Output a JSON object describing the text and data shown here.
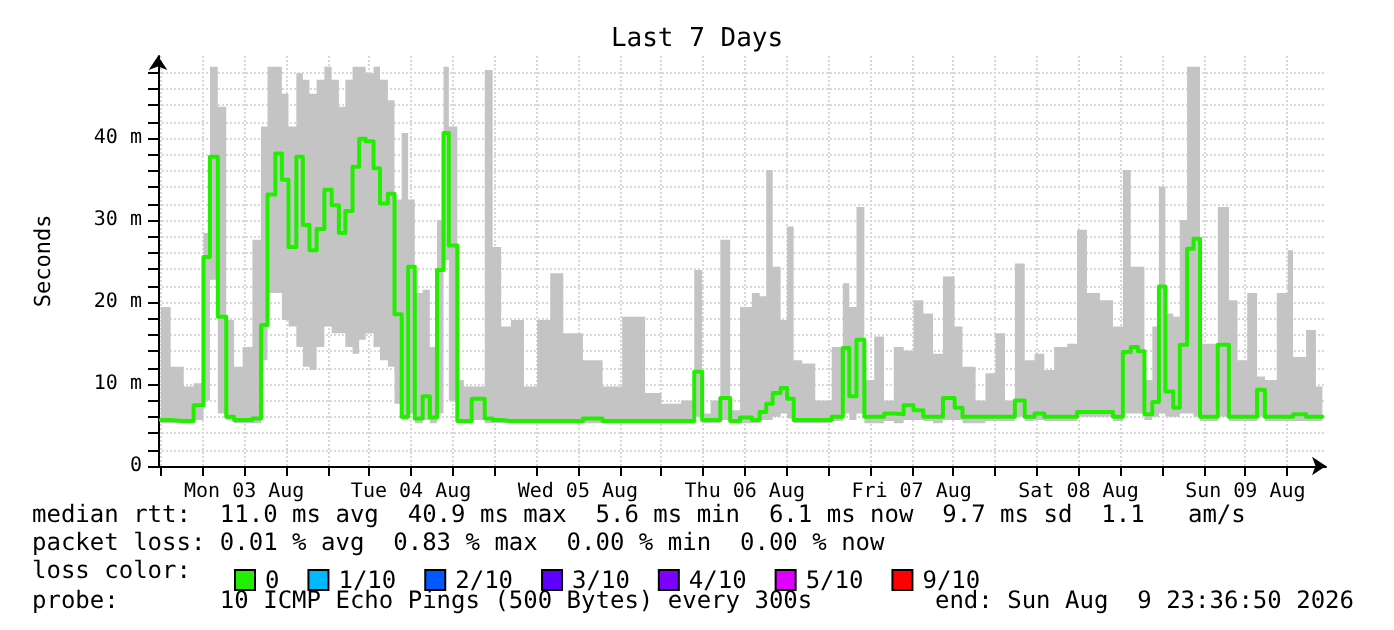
{
  "chart_data": {
    "type": "step",
    "title": "Last 7 Days",
    "ylabel": "Seconds",
    "legend_title": "loss color:",
    "legend": "bottom left",
    "grid": true,
    "marker": "none",
    "line_style": "solid",
    "xlim": [
      "2026-08-02T23:36",
      "2026-08-09T23:36"
    ],
    "xticks": [
      {
        "value": "2026-08-03T00:00",
        "label": null
      },
      {
        "value": "2026-08-03T06:00",
        "label": null
      },
      {
        "value": "2026-08-03T12:00",
        "label": "Mon 03 Aug"
      },
      {
        "value": "2026-08-03T18:00",
        "label": null
      },
      {
        "value": "2026-08-04T00:00",
        "label": null
      },
      {
        "value": "2026-08-04T06:00",
        "label": null
      },
      {
        "value": "2026-08-04T12:00",
        "label": "Tue 04 Aug"
      },
      {
        "value": "2026-08-04T18:00",
        "label": null
      },
      {
        "value": "2026-08-05T00:00",
        "label": null
      },
      {
        "value": "2026-08-05T06:00",
        "label": null
      },
      {
        "value": "2026-08-05T12:00",
        "label": "Wed 05 Aug"
      },
      {
        "value": "2026-08-05T18:00",
        "label": null
      },
      {
        "value": "2026-08-06T00:00",
        "label": null
      },
      {
        "value": "2026-08-06T06:00",
        "label": null
      },
      {
        "value": "2026-08-06T12:00",
        "label": "Thu 06 Aug"
      },
      {
        "value": "2026-08-06T18:00",
        "label": null
      },
      {
        "value": "2026-08-07T00:00",
        "label": null
      },
      {
        "value": "2026-08-07T06:00",
        "label": null
      },
      {
        "value": "2026-08-07T12:00",
        "label": "Fri 07 Aug"
      },
      {
        "value": "2026-08-07T18:00",
        "label": null
      },
      {
        "value": "2026-08-08T00:00",
        "label": null
      },
      {
        "value": "2026-08-08T06:00",
        "label": null
      },
      {
        "value": "2026-08-08T12:00",
        "label": "Sat 08 Aug"
      },
      {
        "value": "2026-08-08T18:00",
        "label": null
      },
      {
        "value": "2026-08-09T00:00",
        "label": null
      },
      {
        "value": "2026-08-09T06:00",
        "label": null
      },
      {
        "value": "2026-08-09T12:00",
        "label": "Sun 09 Aug"
      },
      {
        "value": "2026-08-09T18:00",
        "label": null
      }
    ],
    "ylim": [
      0,
      50
    ],
    "yticks": [
      0,
      {
        "value": 2,
        "label": null
      },
      {
        "value": 4,
        "label": null
      },
      {
        "value": 6,
        "label": null
      },
      {
        "value": 8,
        "label": null
      },
      {
        "value": 10,
        "label": "10 m"
      },
      {
        "value": 12,
        "label": null
      },
      {
        "value": 14,
        "label": null
      },
      {
        "value": 16,
        "label": null
      },
      {
        "value": 18,
        "label": null
      },
      {
        "value": 20,
        "label": "20 m"
      },
      {
        "value": 22,
        "label": null
      },
      {
        "value": 24,
        "label": null
      },
      {
        "value": 26,
        "label": null
      },
      {
        "value": 28,
        "label": null
      },
      {
        "value": 30,
        "label": "30 m"
      },
      {
        "value": 32,
        "label": null
      },
      {
        "value": 34,
        "label": null
      },
      {
        "value": 36,
        "label": null
      },
      {
        "value": 38,
        "label": null
      },
      {
        "value": 40,
        "label": "40 m"
      },
      {
        "value": 42,
        "label": null
      },
      {
        "value": 44,
        "label": null
      },
      {
        "value": 46,
        "label": null
      },
      {
        "value": 48,
        "label": null
      }
    ],
    "annotations": [
      "median rtt:  11.0 ms avg  40.9 ms max  5.6 ms min  6.1 ms now  9.7 ms sd  1.1   am/s",
      "packet loss: 0.01 % avg  0.83 % max  0.00 % min  0.00 % now",
      "probe:       10 ICMP Echo Pings (500 Bytes) every 300s",
      "end: Sun Aug  9 23:36:50 2026"
    ],
    "series": [
      {
        "name": "0",
        "color": "#22ee00",
        "x": [
          "2026-08-03T00:00",
          "2026-08-03T01:25",
          "2026-08-03T03:18",
          "2026-08-03T04:43",
          "2026-08-03T06:08",
          "2026-08-03T07:04",
          "2026-08-03T08:12",
          "2026-08-03T09:25",
          "2026-08-03T10:33",
          "2026-08-03T11:47",
          "2026-08-03T13:11",
          "2026-08-03T14:25",
          "2026-08-03T15:21",
          "2026-08-03T16:29",
          "2026-08-03T17:25",
          "2026-08-03T18:22",
          "2026-08-03T19:30",
          "2026-08-03T20:26",
          "2026-08-03T21:23",
          "2026-08-03T22:25",
          "2026-08-03T23:32",
          "2026-08-04T00:35",
          "2026-08-04T01:37",
          "2026-08-04T02:33",
          "2026-08-04T03:35",
          "2026-08-04T04:32",
          "2026-08-04T05:28",
          "2026-08-04T06:36",
          "2026-08-04T07:32",
          "2026-08-04T08:40",
          "2026-08-04T09:37",
          "2026-08-04T10:39",
          "2026-08-04T11:35",
          "2026-08-04T12:32",
          "2026-08-04T13:40",
          "2026-08-04T14:42",
          "2026-08-04T15:44",
          "2026-08-04T16:40",
          "2026-08-04T17:26",
          "2026-08-04T18:39",
          "2026-08-04T19:35",
          "2026-08-04T20:43",
          "2026-08-04T22:36",
          "2026-08-04T23:44",
          "2026-08-05T00:58",
          "2026-08-05T02:22",
          "2026-08-05T04:15",
          "2026-08-05T06:08",
          "2026-08-05T08:01",
          "2026-08-05T09:54",
          "2026-08-05T12:43",
          "2026-08-05T15:33",
          "2026-08-05T18:22",
          "2026-08-05T21:40",
          "2026-08-06T00:01",
          "2026-08-06T02:50",
          "2026-08-06T04:44",
          "2026-08-06T05:52",
          "2026-08-06T07:05",
          "2026-08-06T08:29",
          "2026-08-06T09:54",
          "2026-08-06T11:19",
          "2026-08-06T13:01",
          "2026-08-06T14:08",
          "2026-08-06T15:05",
          "2026-08-06T16:01",
          "2026-08-06T17:09",
          "2026-08-06T18:05",
          "2026-08-06T19:02",
          "2026-08-06T20:16",
          "2026-08-06T22:08",
          "2026-08-07T00:30",
          "2026-08-07T02:06",
          "2026-08-07T03:02",
          "2026-08-07T04:04",
          "2026-08-07T05:12",
          "2026-08-07T06:37",
          "2026-08-07T08:02",
          "2026-08-07T09:26",
          "2026-08-07T10:51",
          "2026-08-07T12:16",
          "2026-08-07T13:41",
          "2026-08-07T15:05",
          "2026-08-07T16:30",
          "2026-08-07T18:11",
          "2026-08-07T19:19",
          "2026-08-07T21:12",
          "2026-08-07T22:37",
          "2026-08-08T00:02",
          "2026-08-08T01:26",
          "2026-08-08T02:51",
          "2026-08-08T04:16",
          "2026-08-08T05:41",
          "2026-08-08T07:05",
          "2026-08-08T08:30",
          "2026-08-08T10:23",
          "2026-08-08T11:48",
          "2026-08-08T13:13",
          "2026-08-08T15:05",
          "2026-08-08T16:58",
          "2026-08-08T18:23",
          "2026-08-08T19:31",
          "2026-08-08T20:33",
          "2026-08-08T21:29",
          "2026-08-08T22:37",
          "2026-08-08T23:34",
          "2026-08-09T00:30",
          "2026-08-09T01:38",
          "2026-08-09T02:34",
          "2026-08-09T03:37",
          "2026-08-09T04:33",
          "2026-08-09T05:29",
          "2026-08-09T06:26",
          "2026-08-09T08:02",
          "2026-08-09T09:38",
          "2026-08-09T10:52",
          "2026-08-09T12:16",
          "2026-08-09T13:41",
          "2026-08-09T14:49",
          "2026-08-09T16:31",
          "2026-08-09T18:06",
          "2026-08-09T18:52",
          "2026-08-09T20:44",
          "2026-08-09T22:09",
          "2026-08-09T23:05"
        ],
        "values": [
          5.6,
          5.6,
          5.5,
          5.5,
          7.4,
          25.5,
          37.7,
          18.2,
          6,
          5.6,
          5.6,
          5.8,
          17.2,
          33.1,
          38.1,
          34.9,
          26.7,
          37.7,
          29.4,
          26.3,
          28.9,
          33.7,
          31.8,
          28.4,
          31.1,
          36.5,
          39.9,
          39.6,
          36.3,
          32,
          33.2,
          18.5,
          6,
          24.3,
          5.8,
          8.5,
          5.9,
          23.9,
          40.6,
          26.9,
          5.5,
          5.5,
          8.2,
          5.8,
          5.6,
          5.5,
          5.5,
          5.5,
          5.5,
          5.5,
          5.5,
          5.8,
          5.5,
          5.5,
          5.5,
          5.5,
          5.5,
          11.5,
          5.6,
          5.6,
          8.3,
          5.5,
          5.9,
          5.6,
          6.6,
          7.6,
          8.9,
          9.5,
          8.2,
          5.6,
          5.6,
          5.6,
          6,
          14.4,
          8.5,
          15.4,
          6,
          6,
          6.4,
          6.3,
          7.4,
          6.8,
          6,
          6,
          8.3,
          7.1,
          6,
          6,
          6,
          6,
          6,
          8,
          6,
          6.4,
          6,
          6,
          6,
          6.6,
          6.6,
          6.6,
          6,
          13.9,
          14.5,
          14,
          6.3,
          7.8,
          21.9,
          9.1,
          7.1,
          14.8,
          26.5,
          27.7,
          6,
          6,
          14.8,
          6,
          6,
          6,
          9.3,
          6,
          6,
          6,
          6.3,
          6,
          6
        ],
        "upper": [
          8,
          19.4,
          12.1,
          9.7,
          10.1,
          28.4,
          48.7,
          43.8,
          17.8,
          12.1,
          14.5,
          27.6,
          41.4,
          48.7,
          48.7,
          45.4,
          41.4,
          47.9,
          47.1,
          45.4,
          47.1,
          48.7,
          47.1,
          43.8,
          47.1,
          48.7,
          48.7,
          47.9,
          48.7,
          47.1,
          44.6,
          32.5,
          40.6,
          32.5,
          21.1,
          21.5,
          14.5,
          30,
          48.7,
          41.4,
          10.5,
          9.7,
          9.7,
          48.3,
          26.7,
          17,
          17.8,
          9.7,
          17.8,
          23.5,
          16.2,
          12.9,
          9.7,
          18.2,
          8.9,
          7.6,
          8,
          23.9,
          6.4,
          8,
          27.6,
          6.8,
          19.4,
          21.1,
          20.7,
          36.1,
          24.3,
          17.8,
          29.2,
          12.9,
          12.5,
          8,
          14.5,
          22.3,
          19.4,
          31.6,
          10.5,
          15.8,
          8,
          14.5,
          14.1,
          20.2,
          18.6,
          13.7,
          23.1,
          17,
          12.1,
          8,
          11.3,
          16.2,
          8,
          24.7,
          12.9,
          13.7,
          11.7,
          14.5,
          14.9,
          28.8,
          21.1,
          20.2,
          17,
          36.1,
          24.3,
          24.3,
          10.5,
          17,
          34.1,
          18.6,
          18.2,
          30,
          48.7,
          48.7,
          14.9,
          14.9,
          31.6,
          20.2,
          12.9,
          21.1,
          10.9,
          10.5,
          21.1,
          26.3,
          13.3,
          16.6,
          9.7
        ],
        "lower": [
          5.2,
          5.2,
          5.2,
          5.2,
          5.6,
          8,
          22.7,
          6.4,
          5.6,
          5.2,
          5.2,
          5.2,
          12.9,
          21.1,
          21.1,
          17.8,
          17,
          14.5,
          12.1,
          11.7,
          14.5,
          17,
          16.2,
          16.2,
          14.5,
          13.7,
          15.4,
          16.2,
          14.5,
          12.9,
          12.1,
          7.6,
          5.6,
          6.4,
          5.2,
          5.6,
          5.2,
          6.4,
          25.1,
          8,
          5.2,
          5.2,
          5.6,
          5.2,
          5.2,
          5.2,
          5.2,
          5.2,
          5.2,
          5.2,
          5.2,
          5.2,
          5.2,
          5.2,
          5.2,
          5.2,
          5.2,
          6,
          5.2,
          5.2,
          5.6,
          5.2,
          5.2,
          5.2,
          5.6,
          5.6,
          6,
          6.4,
          5.8,
          5.2,
          5.2,
          5.2,
          5.5,
          6.4,
          5.6,
          6.4,
          5.2,
          5.2,
          5.5,
          5.2,
          5.6,
          5.6,
          5.5,
          5.2,
          5.6,
          5.6,
          5.2,
          5.2,
          5.5,
          5.5,
          5.5,
          6,
          5.5,
          5.6,
          5.5,
          5.5,
          5.5,
          6,
          6,
          6,
          5.5,
          6.4,
          6.4,
          6.4,
          5.6,
          6,
          6.4,
          6,
          6,
          6.4,
          6.4,
          6,
          5.5,
          5.5,
          6,
          5.5,
          5.5,
          5.5,
          6,
          5.5,
          5.5,
          5.5,
          5.5,
          5.5,
          5.5
        ]
      },
      {
        "name": "1/10",
        "color": "#00b8ff"
      },
      {
        "name": "2/10",
        "color": "#0059ff"
      },
      {
        "name": "3/10",
        "color": "#5e00ff"
      },
      {
        "name": "4/10",
        "color": "#7e00ff"
      },
      {
        "name": "5/10",
        "color": "#dd00ff"
      },
      {
        "name": "9/10",
        "color": "#ff0000"
      }
    ]
  }
}
